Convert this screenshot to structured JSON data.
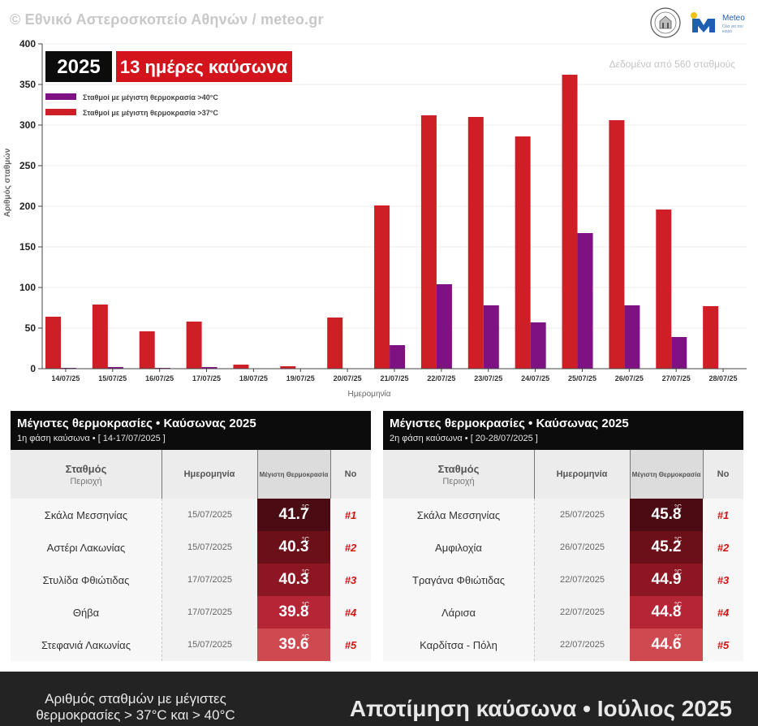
{
  "header": {
    "copyright": "© Εθνικό Αστεροσκοπείο Αθηνών / meteo.gr",
    "logo_text": "Meteo",
    "logo_tagline": "Όλα για τον καιρό"
  },
  "badges": {
    "year": "2025",
    "days": "13 ημέρες καύσωνα"
  },
  "colors": {
    "red_bar": "#cf1f26",
    "purple_bar": "#7e1283",
    "dark": "#0c0c0c"
  },
  "chart_data": {
    "type": "bar",
    "title": "",
    "note": "Δεδομένα από 560 σταθμούς",
    "xlabel": "Ημερομηνία",
    "ylabel": "Αριθμός σταθμών",
    "ylim": [
      0,
      400
    ],
    "yticks": [
      0,
      50,
      100,
      150,
      200,
      250,
      300,
      350,
      400
    ],
    "grid": true,
    "legend_position": "top-left",
    "categories": [
      "14/07/25",
      "15/07/25",
      "16/07/25",
      "17/07/25",
      "18/07/25",
      "19/07/25",
      "20/07/25",
      "21/07/25",
      "22/07/25",
      "23/07/25",
      "24/07/25",
      "25/07/25",
      "26/07/25",
      "27/07/25",
      "28/07/25"
    ],
    "series": [
      {
        "name": "Σταθμοί με μέγιστη θερμοκρασία >37°C",
        "color": "#cf1f26",
        "values": [
          64,
          79,
          46,
          58,
          5,
          3,
          63,
          201,
          312,
          310,
          286,
          362,
          306,
          196,
          77
        ]
      },
      {
        "name": "Σταθμοί με μέγιστη θερμοκρασία >40°C",
        "color": "#7e1283",
        "values": [
          1,
          2,
          1,
          2,
          0,
          0,
          0,
          29,
          104,
          78,
          57,
          167,
          78,
          39,
          0
        ]
      }
    ]
  },
  "tables": [
    {
      "title": "Μέγιστες θερμοκρασίες • Καύσωνας 2025",
      "subtitle": "1η φάση καύσωνα • [ 14-17/07/2025 ]",
      "columns": {
        "station": "Σταθμός",
        "region": "Περιοχή",
        "date": "Ημερομηνία",
        "max_temp": "Μέγιστη Θερμοκρασία",
        "no": "No"
      },
      "rows": [
        {
          "station": "Σκάλα Μεσσηνίας",
          "date": "15/07/2025",
          "temp": "41.7",
          "unit": "°C",
          "rank": "#1"
        },
        {
          "station": "Αστέρι Λακωνίας",
          "date": "15/07/2025",
          "temp": "40.3",
          "unit": "°C",
          "rank": "#2"
        },
        {
          "station": "Στυλίδα Φθιώτιδας",
          "date": "17/07/2025",
          "temp": "40.3",
          "unit": "°C",
          "rank": "#3"
        },
        {
          "station": "Θήβα",
          "date": "17/07/2025",
          "temp": "39.8",
          "unit": "°C",
          "rank": "#4"
        },
        {
          "station": "Στεφανιά Λακωνίας",
          "date": "15/07/2025",
          "temp": "39.6",
          "unit": "°C",
          "rank": "#5"
        }
      ]
    },
    {
      "title": "Μέγιστες θερμοκρασίες • Καύσωνας 2025",
      "subtitle": "2η φάση καύσωνα • [ 20-28/07/2025 ]",
      "columns": {
        "station": "Σταθμός",
        "region": "Περιοχή",
        "date": "Ημερομηνία",
        "max_temp": "Μέγιστη Θερμοκρασία",
        "no": "No"
      },
      "rows": [
        {
          "station": "Σκάλα Μεσσηνίας",
          "date": "25/07/2025",
          "temp": "45.8",
          "unit": "°C",
          "rank": "#1"
        },
        {
          "station": "Αμφιλοχία",
          "date": "26/07/2025",
          "temp": "45.2",
          "unit": "°C",
          "rank": "#2"
        },
        {
          "station": "Τραγάνα Φθιώτιδας",
          "date": "22/07/2025",
          "temp": "44.9",
          "unit": "°C",
          "rank": "#3"
        },
        {
          "station": "Λάρισα",
          "date": "22/07/2025",
          "temp": "44.8",
          "unit": "°C",
          "rank": "#4"
        },
        {
          "station": "Καρδίτσα - Πόλη",
          "date": "22/07/2025",
          "temp": "44.6",
          "unit": "°C",
          "rank": "#5"
        }
      ]
    }
  ],
  "rank_colors": [
    "#4a0c12",
    "#6b0f18",
    "#8c1722",
    "#b52535",
    "#cf4a50"
  ],
  "footer": {
    "left": "Αριθμός σταθμών με μέγιστες θερμοκρασίες > 37°C και > 40°C",
    "right": "Αποτίμηση καύσωνα • Ιούλιος 2025"
  }
}
